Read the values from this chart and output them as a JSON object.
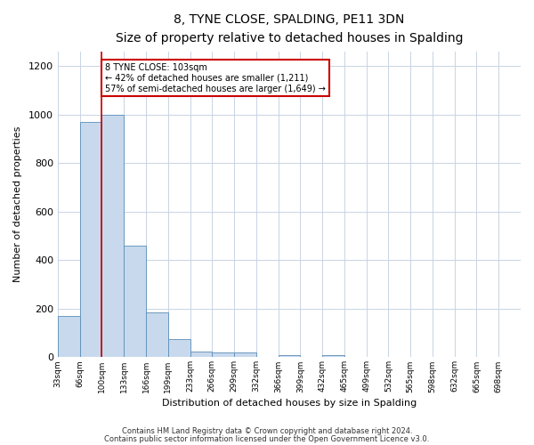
{
  "title": "8, TYNE CLOSE, SPALDING, PE11 3DN",
  "subtitle": "Size of property relative to detached houses in Spalding",
  "xlabel": "Distribution of detached houses by size in Spalding",
  "ylabel": "Number of detached properties",
  "bin_labels": [
    "33sqm",
    "66sqm",
    "100sqm",
    "133sqm",
    "166sqm",
    "199sqm",
    "233sqm",
    "266sqm",
    "299sqm",
    "332sqm",
    "366sqm",
    "399sqm",
    "432sqm",
    "465sqm",
    "499sqm",
    "532sqm",
    "565sqm",
    "598sqm",
    "632sqm",
    "665sqm",
    "698sqm"
  ],
  "bin_edges_raw": [
    33,
    66,
    100,
    133,
    166,
    199,
    233,
    266,
    299,
    332,
    366,
    399,
    432,
    465,
    499,
    532,
    565,
    598,
    632,
    665,
    698,
    731
  ],
  "bar_heights": [
    170,
    970,
    1000,
    460,
    185,
    75,
    25,
    20,
    20,
    0,
    10,
    0,
    10,
    0,
    0,
    0,
    0,
    0,
    0,
    0,
    0
  ],
  "bar_color": "#c8d9ed",
  "bar_edge_color": "#5b8db8",
  "property_size": 103,
  "marker_line_color": "#cc0000",
  "annotation_line1": "8 TYNE CLOSE: 103sqm",
  "annotation_line2": "← 42% of detached houses are smaller (1,211)",
  "annotation_line3": "57% of semi-detached houses are larger (1,649) →",
  "annotation_box_color": "#ffffff",
  "annotation_box_edge": "#cc0000",
  "ylim": [
    0,
    1260
  ],
  "yticks": [
    0,
    200,
    400,
    600,
    800,
    1000,
    1200
  ],
  "footnote1": "Contains HM Land Registry data © Crown copyright and database right 2024.",
  "footnote2": "Contains public sector information licensed under the Open Government Licence v3.0.",
  "background_color": "#ffffff",
  "grid_color": "#c8d4e3"
}
